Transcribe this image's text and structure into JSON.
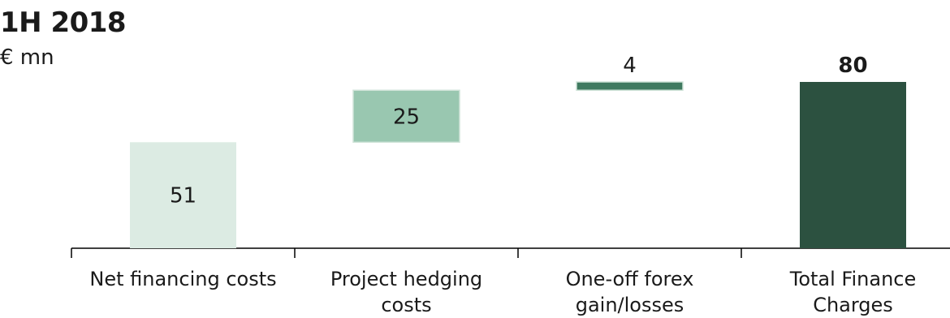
{
  "chart_data": {
    "type": "waterfall",
    "title": "1H 2018",
    "unit": "€ mn",
    "categories": [
      "Net financing costs",
      "Project hedging costs",
      "One-off forex gain/losses",
      "Total Finance Charges"
    ],
    "category_lines": [
      [
        "Net financing costs"
      ],
      [
        "Project hedging",
        "costs"
      ],
      [
        "One-off forex",
        "gain/losses"
      ],
      [
        "Total Finance",
        "Charges"
      ]
    ],
    "values": [
      51,
      25,
      4,
      80
    ],
    "labels": [
      "51",
      "25",
      "4",
      "80"
    ],
    "kinds": [
      "base",
      "increase",
      "increase",
      "total"
    ],
    "ylim": [
      0,
      80
    ],
    "grid": false,
    "colors": [
      "#dcebe3",
      "#99c7b0",
      "#3f7a60",
      "#2c5140"
    ],
    "label_colors": [
      "#1a1a1a",
      "#1a1a1a",
      "#1a1a1a",
      "#1a1a1a"
    ]
  }
}
